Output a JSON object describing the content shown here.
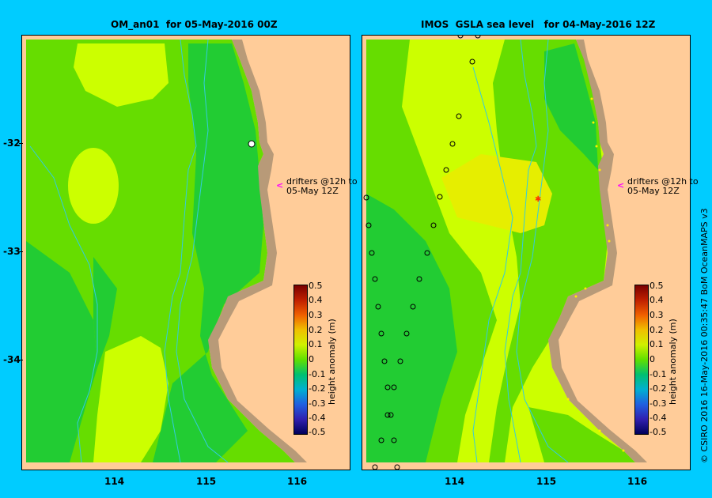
{
  "left_panel": {
    "title": "OM_an01  for 05-May-2016 00Z",
    "drifter_note": "drifters @12h to\n05-May 12Z"
  },
  "right_panel": {
    "title": "IMOS  GSLA sea level   for 04-May-2016 12Z",
    "drifter_note": "drifters @12h to\n05-May 12Z"
  },
  "y_labels": [
    "-32",
    "-33",
    "-34"
  ],
  "x_labels": [
    "114",
    "115",
    "116"
  ],
  "colorbar": {
    "title": "height anomaly (m)",
    "ticks": [
      "0.5",
      "0.4",
      "0.3",
      "0.2",
      "0.1",
      "0",
      "-0.1",
      "-0.2",
      "-0.3",
      "-0.4",
      "-0.5"
    ]
  },
  "credit": "© CSIRO 2016   16-May-2016 00:35:47 BoM OceanMAPS v3",
  "colors": {
    "background": "#00ccff",
    "land": "#ffcc99",
    "coast": "#b89a78",
    "sea_mid": "#66dd00",
    "sea_low": "#22cc33",
    "sea_high": "#ccff00",
    "bathy": "#33ccdd"
  }
}
